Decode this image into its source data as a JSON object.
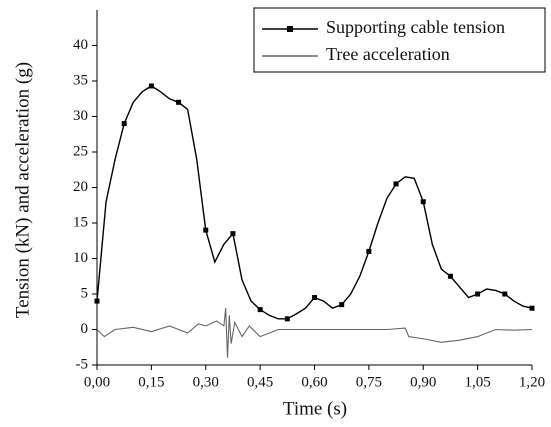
{
  "chart_data": {
    "type": "line",
    "xlabel": "Time (s)",
    "ylabel": "Tension (kN) and acceleration (g)",
    "xlim": [
      0,
      1.2
    ],
    "ylim": [
      -5,
      45
    ],
    "xticks": [
      {
        "value": 0,
        "label": "0,00"
      },
      {
        "value": 0.15,
        "label": "0,15"
      },
      {
        "value": 0.3,
        "label": "0,30"
      },
      {
        "value": 0.45,
        "label": "0,45"
      },
      {
        "value": 0.6,
        "label": "0,60"
      },
      {
        "value": 0.75,
        "label": "0,75"
      },
      {
        "value": 0.9,
        "label": "0,90"
      },
      {
        "value": 1.05,
        "label": "1,05"
      },
      {
        "value": 1.2,
        "label": "1,20"
      }
    ],
    "yticks": [
      -5,
      0,
      5,
      10,
      15,
      20,
      25,
      30,
      35,
      40
    ],
    "legend": "upper right",
    "series": [
      {
        "name": "Supporting cable tension",
        "color": "#000000",
        "marker": "square",
        "x": [
          0,
          0.025,
          0.05,
          0.075,
          0.1,
          0.125,
          0.15,
          0.175,
          0.2,
          0.225,
          0.25,
          0.275,
          0.3,
          0.325,
          0.35,
          0.375,
          0.4,
          0.425,
          0.45,
          0.475,
          0.5,
          0.525,
          0.55,
          0.575,
          0.6,
          0.625,
          0.65,
          0.675,
          0.7,
          0.725,
          0.75,
          0.775,
          0.8,
          0.825,
          0.85,
          0.875,
          0.9,
          0.925,
          0.95,
          0.975,
          1.0,
          1.025,
          1.05,
          1.075,
          1.1,
          1.125,
          1.15,
          1.175,
          1.2
        ],
        "values": [
          4,
          18,
          24,
          29,
          32,
          33.5,
          34.3,
          33.5,
          32.5,
          32,
          31,
          24,
          14,
          9.5,
          12,
          13.5,
          7,
          4,
          2.8,
          2,
          1.5,
          1.5,
          2.2,
          3,
          4.5,
          4,
          3,
          3.5,
          5,
          7.5,
          11,
          15,
          18.5,
          20.5,
          21.5,
          21.3,
          18,
          12,
          8.5,
          7.5,
          6,
          4.5,
          5,
          5.7,
          5.5,
          5,
          4,
          3.3,
          3
        ]
      },
      {
        "name": "Tree acceleration",
        "color": "#666666",
        "marker": "none",
        "x": [
          0,
          0.02,
          0.05,
          0.1,
          0.15,
          0.2,
          0.25,
          0.28,
          0.3,
          0.33,
          0.35,
          0.355,
          0.36,
          0.365,
          0.37,
          0.38,
          0.4,
          0.42,
          0.45,
          0.5,
          0.6,
          0.7,
          0.8,
          0.85,
          0.86,
          0.9,
          0.95,
          1.0,
          1.05,
          1.1,
          1.15,
          1.2
        ],
        "values": [
          0,
          -1,
          0,
          0.3,
          -0.3,
          0.5,
          -0.5,
          0.8,
          0.5,
          1.2,
          0.5,
          3,
          -4,
          2,
          -2,
          1,
          -1,
          0.5,
          -1,
          0,
          0,
          0,
          0,
          0.2,
          -1,
          -1.3,
          -1.8,
          -1.5,
          -1,
          0,
          -0.1,
          0
        ]
      }
    ]
  }
}
